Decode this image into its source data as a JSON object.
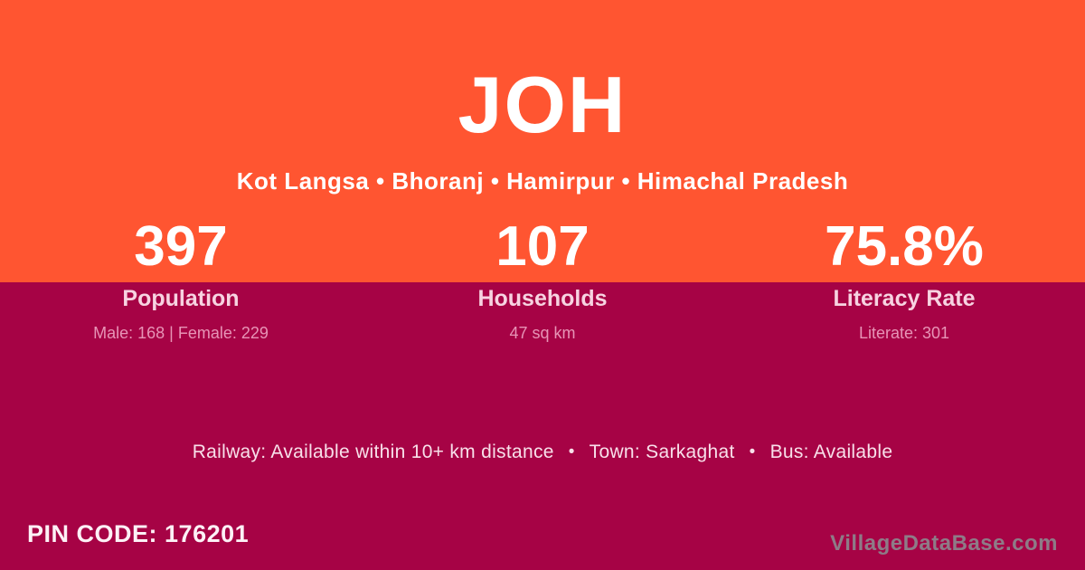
{
  "colors": {
    "top-bg": "#FF5531",
    "bottom-bg": "#A60345",
    "title-text": "#FFFFFF",
    "label-text": "#F7D3E1",
    "detail-text": "#E794B6",
    "footer-text": "#F8E0EA",
    "pin-text": "#FDF1F6",
    "watermark-text": "#8E7B87"
  },
  "header": {
    "title": "JOH",
    "breadcrumb": "Kot Langsa • Bhoranj • Hamirpur • Himachal Pradesh"
  },
  "stats": [
    {
      "value": "397",
      "label": "Population",
      "detail": "Male: 168 | Female: 229"
    },
    {
      "value": "107",
      "label": "Households",
      "detail": "47 sq km"
    },
    {
      "value": "75.8%",
      "label": "Literacy Rate",
      "detail": "Literate: 301"
    }
  ],
  "amenities": {
    "railway": "Railway: Available within 10+ km distance",
    "town": "Town: Sarkaghat",
    "bus": "Bus: Available",
    "separator": "•"
  },
  "footer": {
    "pin_label": "PIN CODE:",
    "pin_value": "176201",
    "watermark": "VillageDataBase.com"
  }
}
